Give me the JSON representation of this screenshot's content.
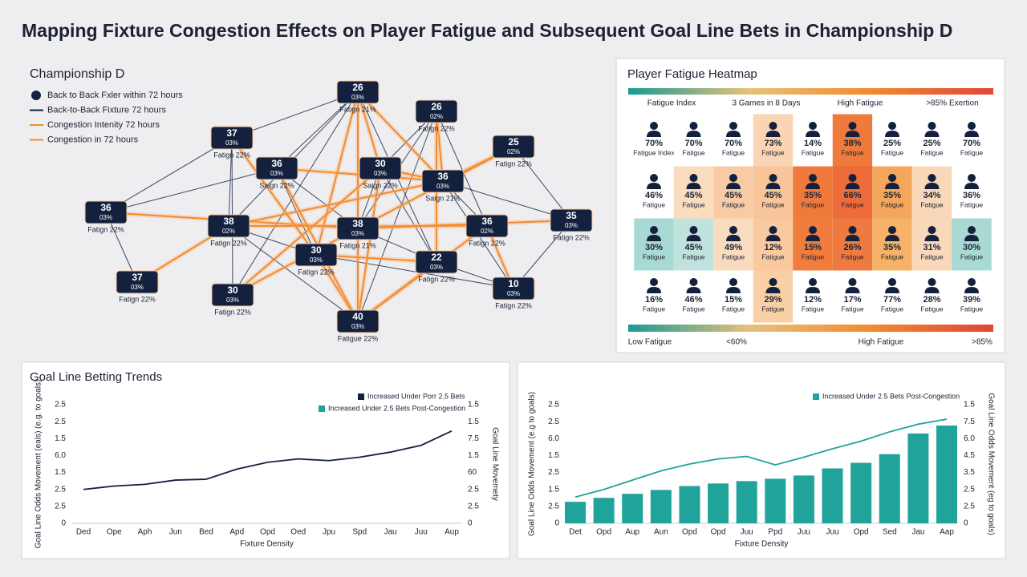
{
  "title": "Mapping Fixture Congestion Effects on Player Fatigue and Subsequent Goal Line Bets in Championship D",
  "chart_data": [
    {
      "type": "network",
      "title": "Championship D",
      "legend": [
        {
          "label": "Back to Back Fxler within 72 hours",
          "marker": "dot",
          "color": "#13213f"
        },
        {
          "label": "Back-to-Back Fixture 72 hours",
          "marker": "line",
          "color": "#13213f"
        },
        {
          "label": "Congestion Intenity 72 hours",
          "marker": "line",
          "color": "#f28a2e"
        },
        {
          "label": "Congestion in 72 hours",
          "marker": "line",
          "color": "#f28a2e"
        }
      ],
      "nodes": [
        {
          "label": "26",
          "share": "03%",
          "caption": "Fatign 21%"
        },
        {
          "label": "26",
          "share": "02%",
          "caption": "Fatign 22%"
        },
        {
          "label": "37",
          "share": "03%",
          "caption": "Fatign 22%"
        },
        {
          "label": "25",
          "share": "02%",
          "caption": "Fatign 22%"
        },
        {
          "label": "36",
          "share": "03%",
          "caption": "Saign 22%"
        },
        {
          "label": "30",
          "share": "03%",
          "caption": "Saign 22%"
        },
        {
          "label": "36",
          "share": "03%",
          "caption": "Saign 21%"
        },
        {
          "label": "36",
          "share": "03%",
          "caption": "Fatign 22%"
        },
        {
          "label": "38",
          "share": "02%",
          "caption": "Fatign 22%"
        },
        {
          "label": "38",
          "share": "03%",
          "caption": "Fatign 21%"
        },
        {
          "label": "36",
          "share": "02%",
          "caption": "Fatign 22%"
        },
        {
          "label": "35",
          "share": "03%",
          "caption": "Fatign 22%"
        },
        {
          "label": "30",
          "share": "03%",
          "caption": "Fatign 22%"
        },
        {
          "label": "22",
          "share": "03%",
          "caption": "Fatign 22%"
        },
        {
          "label": "37",
          "share": "03%",
          "caption": "Fatign 22%"
        },
        {
          "label": "30",
          "share": "03%",
          "caption": "Fatign 22%"
        },
        {
          "label": "10",
          "share": "03%",
          "caption": "Fatign 22%"
        },
        {
          "label": "40",
          "share": "03%",
          "caption": "Fatigue 22%"
        }
      ]
    },
    {
      "type": "heatmap",
      "title": "Player Fatigue Heatmap",
      "header": [
        "Fatigue Index",
        "3 Games in 8 Days",
        "High Fatigue",
        ">85% Exertion"
      ],
      "values": [
        [
          "70%",
          "70%",
          "70%",
          "73%",
          "14%",
          "38%",
          "25%",
          "25%",
          "70%"
        ],
        [
          "46%",
          "45%",
          "45%",
          "45%",
          "35%",
          "66%",
          "35%",
          "34%",
          "36%"
        ],
        [
          "30%",
          "45%",
          "49%",
          "12%",
          "15%",
          "26%",
          "35%",
          "31%",
          "30%"
        ],
        [
          "16%",
          "46%",
          "15%",
          "29%",
          "12%",
          "17%",
          "77%",
          "28%",
          "39%"
        ]
      ],
      "captions": [
        [
          "Fatigue Index",
          "Fatigue",
          "Fatigue",
          "Fatigue",
          "Fatigue",
          "Fatigue",
          "Fatigue",
          "Fatigue",
          "Fatigue"
        ],
        [
          "Fatigue",
          "Fatigue",
          "Fatigue",
          "Fatigue",
          "Fatigue",
          "Fatigue",
          "Fatigue",
          "Fatigue",
          "Fatigue"
        ],
        [
          "Fatigue",
          "Fatigue",
          "Fatigue",
          "Fatigue",
          "Fatigue",
          "Fatigue",
          "Fatigue",
          "Fatigue",
          "Fatigue"
        ],
        [
          "Fatigue",
          "Fatigue",
          "Fatigue",
          "Fatigue",
          "Fatigue",
          "Fatigue",
          "Fatigue",
          "Fatigue",
          "Fatigue"
        ]
      ],
      "colors": [
        [
          "#ffffff",
          "#ffffff",
          "#ffffff",
          "#f9d5b3",
          "#ffffff",
          "#f07a3c",
          "#ffffff",
          "#ffffff",
          "#ffffff"
        ],
        [
          "#ffffff",
          "#fadcbf",
          "#f8cba4",
          "#f8c49a",
          "#f07a3c",
          "#ee6b3a",
          "#f4a65a",
          "#f8d8b8",
          "#ffffff"
        ],
        [
          "#a8dad3",
          "#bfe3dc",
          "#f9dbbf",
          "#f9c9a0",
          "#f07c3e",
          "#ef7a3f",
          "#f6b266",
          "#f8d8b9",
          "#a8dad3"
        ],
        [
          "#ffffff",
          "#ffffff",
          "#ffffff",
          "#f9d0a6",
          "#ffffff",
          "#ffffff",
          "#ffffff",
          "#ffffff",
          "#ffffff"
        ]
      ],
      "gradient": [
        "#1a9b94",
        "#e8c07a",
        "#f28a2e",
        "#e0453a"
      ],
      "footer": [
        "Low Fatigue",
        "<60%",
        "High Fatigue",
        ">85%"
      ]
    },
    {
      "type": "line",
      "title": "Goal Line Betting Trends",
      "x_label": "Fixture Density",
      "y_label": "Goal Line Odds Movement (eals) (e.g. to goals)",
      "y2_label": "Goal Line Movemety",
      "categories": [
        "Ded",
        "Ope",
        "Aph",
        "Jun",
        "Bed",
        "Apd",
        "Opd",
        "Oed",
        "Jpu",
        "Spd",
        "Jau",
        "Juu",
        "Aup"
      ],
      "series": [
        {
          "color": "#13213f",
          "values": [
            2.0,
            2.2,
            2.3,
            2.55,
            2.6,
            3.2,
            3.6,
            3.8,
            3.7,
            3.9,
            4.2,
            4.6,
            5.45
          ]
        }
      ],
      "legend": [
        {
          "name": "Increased Under Porr 2.5 Bets",
          "color": "#13213f"
        },
        {
          "name": "Increased Under 2.5 Bets Post-Congestion",
          "color": "#1fa39a"
        }
      ],
      "ylim": [
        0,
        7
      ],
      "yticks": [
        0,
        {
          "value": 1,
          "label": "2.5"
        },
        {
          "value": 2,
          "label": "2.5"
        },
        {
          "value": 3,
          "label": "1.5"
        },
        {
          "value": 4,
          "label": "6.0"
        },
        {
          "value": 5,
          "label": "1.5"
        },
        {
          "value": 6,
          "label": "2.5"
        },
        {
          "value": 7,
          "label": "2.5"
        }
      ],
      "y2lim": [
        0,
        7
      ],
      "y2ticks": [
        0,
        {
          "value": 1,
          "label": "2.5"
        },
        {
          "value": 2,
          "label": "2.5"
        },
        {
          "value": 3,
          "label": "60"
        },
        {
          "value": 4,
          "label": "1.5"
        },
        {
          "value": 5,
          "label": "7.5"
        },
        {
          "value": 6,
          "label": "1.5"
        },
        {
          "value": 7,
          "label": "1.5"
        }
      ]
    },
    {
      "type": "combo",
      "title": "",
      "x_label": "Fixture Density",
      "y_label": "Goal Line Odds Movement (e.g to goals)",
      "y2_label": "Goal Line Odds Movement (eg to goals)",
      "categories": [
        "Det",
        "Opd",
        "Aup",
        "Aun",
        "Opd",
        "Opd",
        "Juu",
        "Ppd",
        "Juu",
        "Juu",
        "Opd",
        "Sed",
        "Jau",
        "Aap"
      ],
      "series": [
        {
          "type": "bar",
          "color": "#1fa39a",
          "values": [
            1.27,
            1.5,
            1.74,
            1.97,
            2.2,
            2.35,
            2.49,
            2.63,
            2.82,
            3.24,
            3.57,
            4.08,
            5.3,
            5.77
          ]
        },
        {
          "type": "line",
          "color": "#1fa39a",
          "values": [
            1.55,
            2.0,
            2.55,
            3.1,
            3.5,
            3.8,
            3.95,
            3.45,
            3.9,
            4.4,
            4.85,
            5.4,
            5.85,
            6.15
          ]
        }
      ],
      "legend": [
        {
          "name": "Increased Under 2.5 Bets Post-Congestion",
          "color": "#1fa39a"
        }
      ],
      "ylim": [
        0,
        7
      ],
      "yticks": [
        0,
        {
          "value": 1,
          "label": "2.5"
        },
        {
          "value": 2,
          "label": "1.5"
        },
        {
          "value": 3,
          "label": "2.5"
        },
        {
          "value": 4,
          "label": "1.5"
        },
        {
          "value": 5,
          "label": "6.0"
        },
        {
          "value": 6,
          "label": "2.5"
        },
        {
          "value": 7,
          "label": "2.5"
        }
      ],
      "y2lim": [
        0,
        7
      ],
      "y2ticks": [
        0,
        {
          "value": 1,
          "label": "2.5"
        },
        {
          "value": 2,
          "label": "2.5"
        },
        {
          "value": 3,
          "label": "3.5"
        },
        {
          "value": 4,
          "label": "4.5"
        },
        {
          "value": 5,
          "label": "6.0"
        },
        {
          "value": 6,
          "label": "7.5"
        },
        {
          "value": 7,
          "label": "1.5"
        }
      ]
    }
  ]
}
